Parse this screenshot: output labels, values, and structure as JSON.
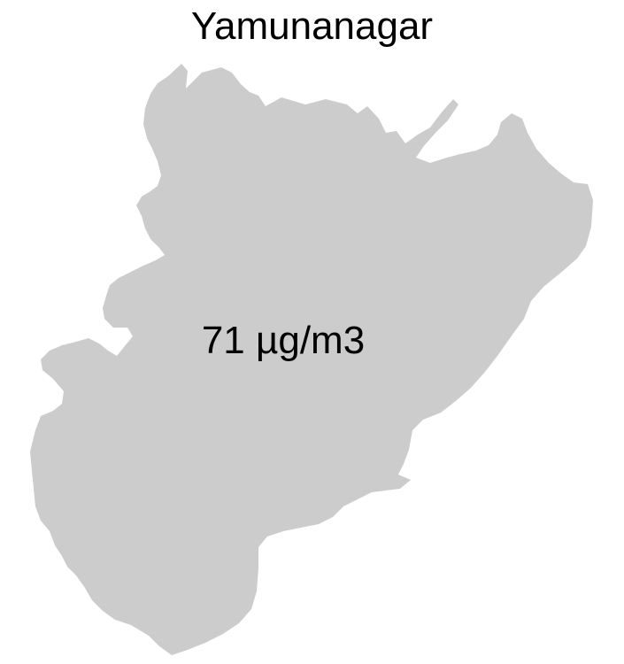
{
  "map": {
    "title": "Yamunanagar",
    "value_label": "71 µg/m3",
    "fill_color": "#cccccc",
    "background_color": "#ffffff",
    "text_color": "#000000"
  }
}
